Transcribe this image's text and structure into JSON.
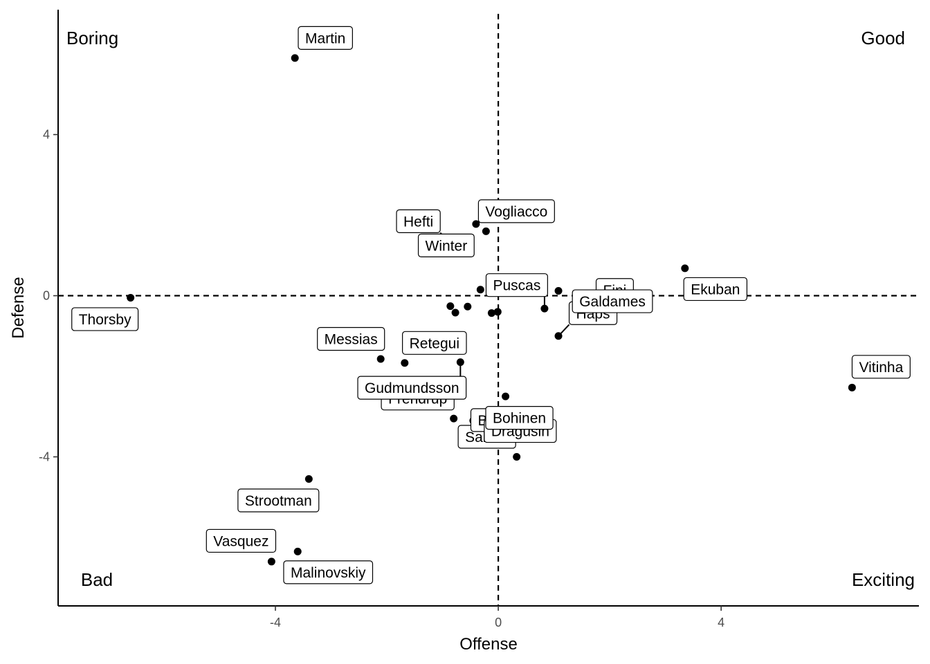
{
  "chart_data": {
    "type": "scatter",
    "xlabel": "Offense",
    "ylabel": "Defense",
    "xlim": [
      -7.9,
      7.55
    ],
    "ylim": [
      7.1,
      -7.7
    ],
    "y_reversed": true,
    "x_ticks": [
      -4,
      0,
      4
    ],
    "y_ticks": [
      -4,
      0,
      4
    ],
    "grid": false,
    "reference_lines": {
      "x": 0,
      "y": 0,
      "style": "dashed"
    },
    "quadrant_labels": {
      "top_left": "Boring",
      "top_right": "Good",
      "bottom_left": "Bad",
      "bottom_right": "Exciting"
    },
    "points": [
      {
        "x": -4.07,
        "y": -6.6,
        "label": "Vasquez"
      },
      {
        "x": -3.6,
        "y": -6.35,
        "label": "Malinovskiy"
      },
      {
        "x": -3.4,
        "y": -4.55,
        "label": "Strootman"
      },
      {
        "x": 0.33,
        "y": -4.0,
        "label": "Sabelli"
      },
      {
        "x": 0.74,
        "y": -3.5,
        "label": "Badelj"
      },
      {
        "x": -0.8,
        "y": -3.05,
        "label": "Frendrup"
      },
      {
        "x": -0.45,
        "y": -3.1,
        "label": "Dragusin"
      },
      {
        "x": 0.13,
        "y": -2.5,
        "label": "Bohinen"
      },
      {
        "x": -2.11,
        "y": -1.57,
        "label": "Messias"
      },
      {
        "x": -1.68,
        "y": -1.67,
        "label": "Retegui"
      },
      {
        "x": -0.68,
        "y": -1.65,
        "label": "Gudmundsson"
      },
      {
        "x": 1.08,
        "y": -1.0,
        "label": "Haps"
      },
      {
        "x": 0.83,
        "y": -0.32,
        "label": "Puscas"
      },
      {
        "x": 2.6,
        "y": -0.15,
        "label": "Fini"
      },
      {
        "x": 1.08,
        "y": 0.12,
        "label": "Galdames"
      },
      {
        "x": 6.35,
        "y": -2.28,
        "label": "Vitinha"
      },
      {
        "x": 3.35,
        "y": 0.68,
        "label": "Ekuban"
      },
      {
        "x": -6.6,
        "y": -0.05,
        "label": "Thorsby"
      },
      {
        "x": -0.9,
        "y": 1.35,
        "label": "Hefti"
      },
      {
        "x": -0.4,
        "y": 1.78,
        "label": "Winter"
      },
      {
        "x": -0.22,
        "y": 1.6,
        "label": "Vogliacco"
      },
      {
        "x": -3.65,
        "y": 5.9,
        "label": "Martin"
      },
      {
        "x": -0.77,
        "y": -0.42,
        "label": ""
      },
      {
        "x": -0.55,
        "y": -0.27,
        "label": ""
      },
      {
        "x": -0.86,
        "y": -0.26,
        "label": ""
      },
      {
        "x": -0.12,
        "y": -0.43,
        "label": ""
      },
      {
        "x": -0.01,
        "y": -0.4,
        "label": ""
      },
      {
        "x": -0.32,
        "y": 0.15,
        "label": ""
      },
      {
        "x": 0.11,
        "y": 0.23,
        "label": ""
      },
      {
        "x": 0.18,
        "y": 0.26,
        "label": ""
      }
    ]
  }
}
